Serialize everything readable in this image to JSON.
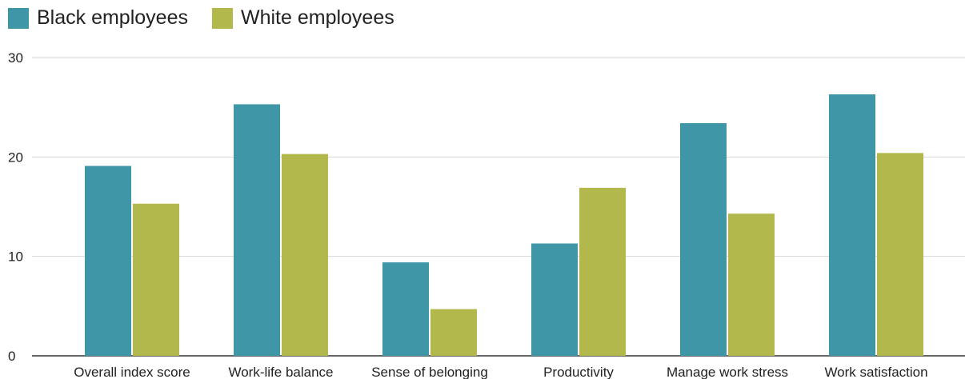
{
  "chart_data": {
    "type": "bar",
    "title": "",
    "xlabel": "",
    "ylabel": "",
    "categories": [
      "Overall index score",
      "Work-life balance",
      "Sense of belonging",
      "Productivity",
      "Manage work stress",
      "Work satisfaction"
    ],
    "series": [
      {
        "name": "Black employees",
        "color": "#3f96a6",
        "values": [
          19.1,
          25.3,
          9.4,
          11.3,
          23.4,
          26.3
        ]
      },
      {
        "name": "White employees",
        "color": "#b3b84c",
        "values": [
          15.3,
          20.3,
          4.7,
          16.9,
          14.3,
          20.4
        ]
      }
    ],
    "ylim": [
      0,
      30
    ],
    "yticks": [
      0,
      10,
      20,
      30
    ],
    "grid": true,
    "legend_position": "top-left"
  }
}
